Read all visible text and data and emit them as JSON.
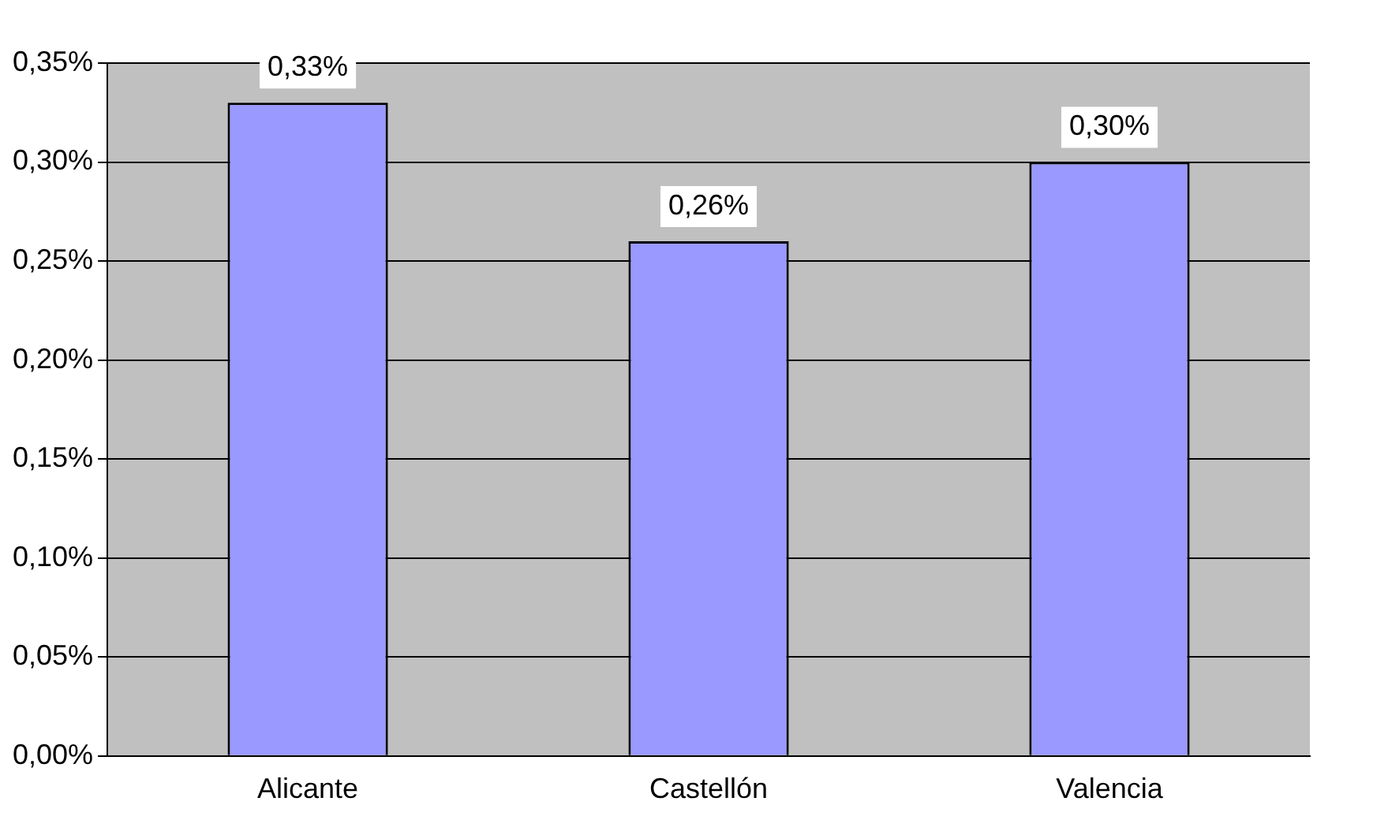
{
  "chart_data": {
    "type": "bar",
    "categories": [
      "Alicante",
      "Castellón",
      "Valencia"
    ],
    "values": [
      0.33,
      0.26,
      0.3
    ],
    "value_labels": [
      "0,33%",
      "0,26%",
      "0,30%"
    ],
    "color": "#9999ff",
    "ylim": [
      0,
      0.35
    ],
    "yticks": [
      {
        "value": 0,
        "label": "0,00%"
      },
      {
        "value": 0.05,
        "label": "0,05%"
      },
      {
        "value": 0.1,
        "label": "0,10%"
      },
      {
        "value": 0.15,
        "label": "0,15%"
      },
      {
        "value": 0.2,
        "label": "0,20%"
      },
      {
        "value": 0.25,
        "label": "0,25%"
      },
      {
        "value": 0.3,
        "label": "0,30%"
      },
      {
        "value": 0.35,
        "label": "0,35%"
      }
    ],
    "grid": "y",
    "legend": false
  }
}
